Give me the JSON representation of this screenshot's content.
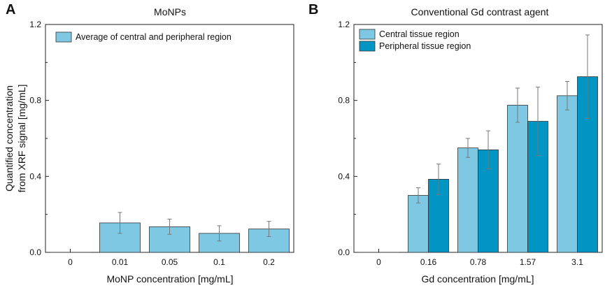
{
  "chart_data": [
    {
      "panel": "A",
      "type": "bar",
      "title": "MoNPs",
      "xlabel": "MoNP concentration [mg/mL]",
      "ylabel": [
        "Quantified concentration",
        "from XRF signal [mg/mL]"
      ],
      "categories": [
        "0",
        "0.01",
        "0.05",
        "0.1",
        "0.2"
      ],
      "ylim": [
        0,
        1.2
      ],
      "yticks": [
        "0.0",
        "0.4",
        "0.8",
        "1.2"
      ],
      "legend_position": "top-left",
      "series": [
        {
          "name": "Average of central and peripheral region",
          "color": "#7ec8e3",
          "values": [
            0,
            0.155,
            0.135,
            0.1,
            0.123
          ],
          "errors": [
            0,
            0.055,
            0.04,
            0.04,
            0.04
          ]
        }
      ]
    },
    {
      "panel": "B",
      "type": "bar",
      "title": "Conventional Gd contrast agent",
      "xlabel": "Gd concentration [mg/mL]",
      "ylabel": [],
      "categories": [
        "0",
        "0.16",
        "0.78",
        "1.57",
        "3.1"
      ],
      "ylim": [
        0,
        1.2
      ],
      "yticks": [
        "0.0",
        "0.4",
        "0.8",
        "1.2"
      ],
      "legend_position": "top-left",
      "series": [
        {
          "name": "Central tissue region",
          "color": "#7ec8e3",
          "values": [
            0,
            0.3,
            0.55,
            0.775,
            0.825
          ],
          "errors": [
            0,
            0.04,
            0.05,
            0.09,
            0.075
          ]
        },
        {
          "name": "Peripheral tissue region",
          "color": "#0095c3",
          "values": [
            0,
            0.385,
            0.54,
            0.69,
            0.925
          ],
          "errors": [
            0,
            0.08,
            0.1,
            0.18,
            0.22
          ]
        }
      ]
    }
  ]
}
